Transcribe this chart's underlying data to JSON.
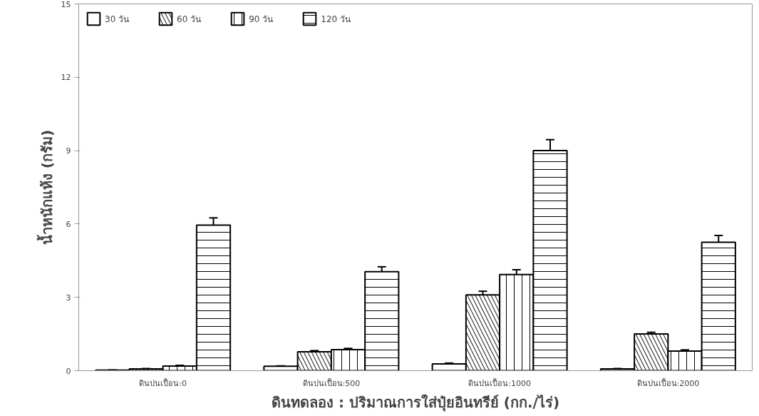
{
  "chart_data": {
    "type": "bar",
    "xlabel": "ดินทดลอง : ปริมาณการใส่ปุ๋ยอินทรีย์ (กก./ไร่)",
    "ylabel": "น้ำหนักแห้ง (กรัม)",
    "categories": [
      "ดินปนเปื้อน:0",
      "ดินปนเปื้อน:500",
      "ดินปนเปื้อน:1000",
      "ดินปนเปื้อน:2000"
    ],
    "series": [
      {
        "name": "30 วัน",
        "color": "#ffffff",
        "values": [
          0.02,
          0.18,
          0.28,
          0.07
        ],
        "errors": [
          0.01,
          0.02,
          0.03,
          0.02
        ]
      },
      {
        "name": "60 วัน",
        "color": "#ffffff",
        "values": [
          0.07,
          0.77,
          3.1,
          1.5
        ],
        "errors": [
          0.02,
          0.05,
          0.15,
          0.07
        ]
      },
      {
        "name": "90 วัน",
        "color": "#ffffff",
        "values": [
          0.19,
          0.86,
          3.93,
          0.8
        ],
        "errors": [
          0.03,
          0.05,
          0.2,
          0.05
        ]
      },
      {
        "name": "120 วัน",
        "color": "#ffffff",
        "values": [
          5.95,
          4.05,
          9.0,
          5.25
        ],
        "errors": [
          0.3,
          0.2,
          0.45,
          0.28
        ]
      }
    ],
    "ylim": [
      0,
      15
    ],
    "yticks": [
      0,
      3,
      6,
      9,
      12,
      15
    ],
    "grid": false,
    "legend": "top left"
  }
}
